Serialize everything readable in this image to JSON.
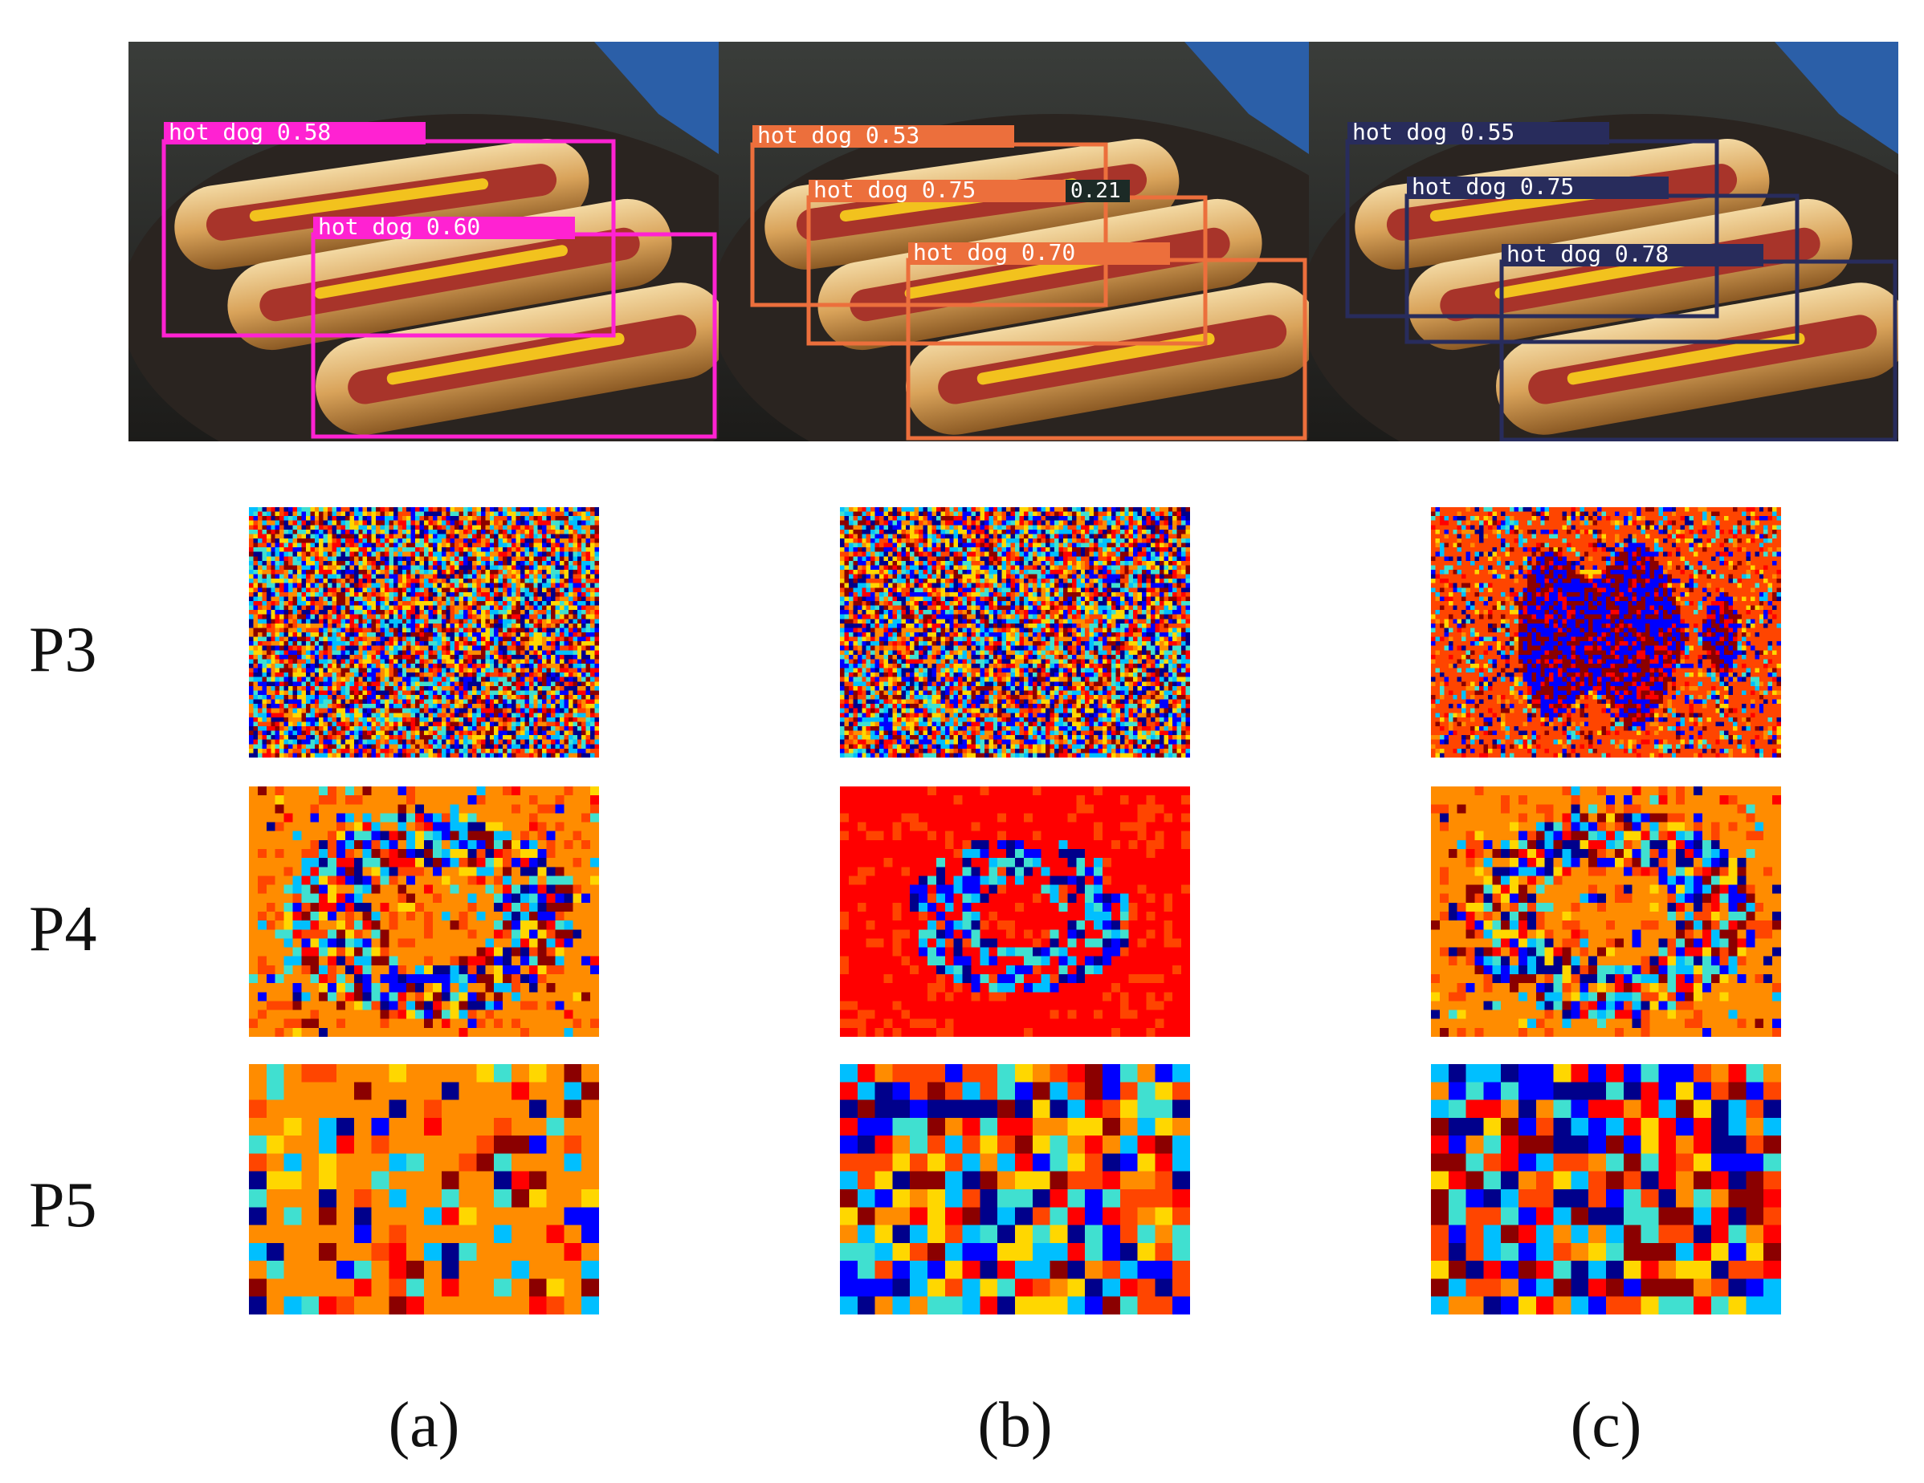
{
  "figure": {
    "panels": [
      {
        "id": "a",
        "label": "(a)",
        "box_color": "#ff22d2",
        "detections": [
          {
            "label": "hot dog 0.58"
          },
          {
            "label": "hot dog 0.60"
          }
        ]
      },
      {
        "id": "b",
        "label": "(b)",
        "box_color": "#ec6f3c",
        "detections": [
          {
            "label": "hot dog 0.53"
          },
          {
            "label": "hot dog 0.75"
          },
          {
            "label": "hot dog 0.70"
          }
        ],
        "extra_fragment": "0.21"
      },
      {
        "id": "c",
        "label": "(c)",
        "box_color": "#282c5c",
        "detections": [
          {
            "label": "hot dog 0.55"
          },
          {
            "label": "hot dog 0.75"
          },
          {
            "label": "hot dog 0.78"
          }
        ]
      }
    ],
    "rows": [
      {
        "label": "P3",
        "grid": "fine"
      },
      {
        "label": "P4",
        "grid": "medium"
      },
      {
        "label": "P5",
        "grid": "coarse"
      }
    ],
    "colormap": [
      "#00008b",
      "#0000ff",
      "#00bfff",
      "#40e0d0",
      "#ffd700",
      "#ff8c00",
      "#ff4500",
      "#ff0000",
      "#8b0000"
    ]
  }
}
